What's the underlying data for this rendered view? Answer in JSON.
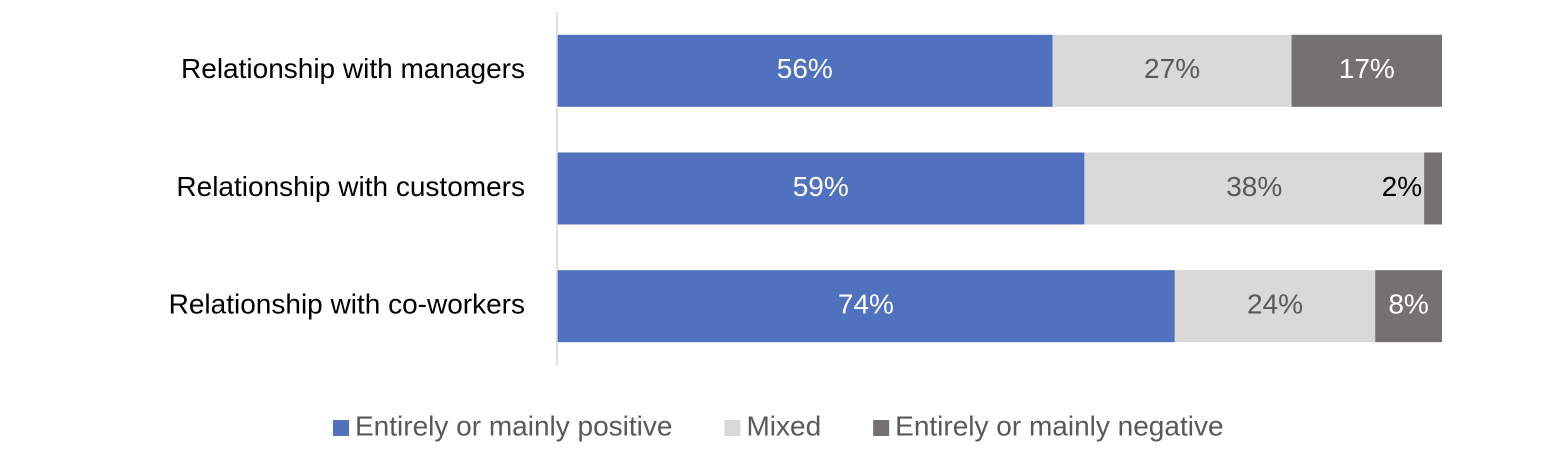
{
  "chart_data": {
    "type": "bar",
    "orientation": "horizontal",
    "stacking": "percent",
    "categories": [
      "Relationship with managers",
      "Relationship with customers",
      "Relationship with co-workers"
    ],
    "series": [
      {
        "name": "Entirely or mainly positive",
        "color": "#4f71be",
        "values": [
          56,
          59,
          74
        ],
        "value_labels": [
          "56%",
          "59%",
          "74%"
        ],
        "label_color": "#ffffff"
      },
      {
        "name": "Mixed",
        "color": "#d9d9d9",
        "values": [
          27,
          38,
          24
        ],
        "value_labels": [
          "27%",
          "38%",
          "24%"
        ],
        "label_color": "#595959"
      },
      {
        "name": "Entirely or mainly negative",
        "color": "#767171",
        "values": [
          17,
          2,
          8
        ],
        "value_labels": [
          "17%",
          "2%",
          "8%"
        ],
        "label_color": "#ffffff"
      }
    ],
    "legend": "bottom"
  }
}
